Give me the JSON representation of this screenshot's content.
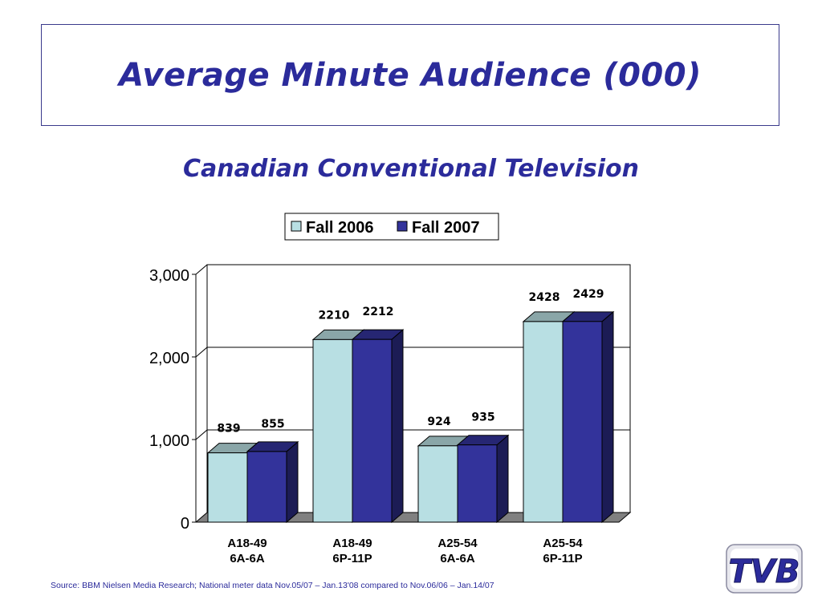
{
  "slide": {
    "title": "Average Minute Audience (000)",
    "subtitle": "Canadian Conventional Television",
    "source": "Source: BBM Nielsen Media Research; National meter data Nov.05/07 – Jan.13'08 compared to Nov.06/06 – Jan.14/07",
    "logo_text": "TVB"
  },
  "colors": {
    "title": "#2b2b9b",
    "fall2006_front": "#b8dfe3",
    "fall2006_top": "#8aa6a8",
    "fall2006_side": "#6f8c8e",
    "fall2007_front": "#33339b",
    "fall2007_top": "#262673",
    "fall2007_side": "#1c1c55",
    "floor": "#808080"
  },
  "chart_data": {
    "type": "bar",
    "title": "",
    "xlabel": "",
    "ylabel": "",
    "ylim": [
      0,
      3000
    ],
    "yticks": [
      0,
      1000,
      2000,
      3000
    ],
    "ytick_labels": [
      "0",
      "1,000",
      "2,000",
      "3,000"
    ],
    "gridlines": true,
    "legend_position": "top",
    "categories": [
      [
        "A18-49",
        "6A-6A"
      ],
      [
        "A18-49",
        "6P-11P"
      ],
      [
        "A25-54",
        "6A-6A"
      ],
      [
        "A25-54",
        "6P-11P"
      ]
    ],
    "series": [
      {
        "name": "Fall 2006",
        "values": [
          839,
          2210,
          924,
          2428
        ]
      },
      {
        "name": "Fall 2007",
        "values": [
          855,
          2212,
          935,
          2429
        ]
      }
    ]
  }
}
